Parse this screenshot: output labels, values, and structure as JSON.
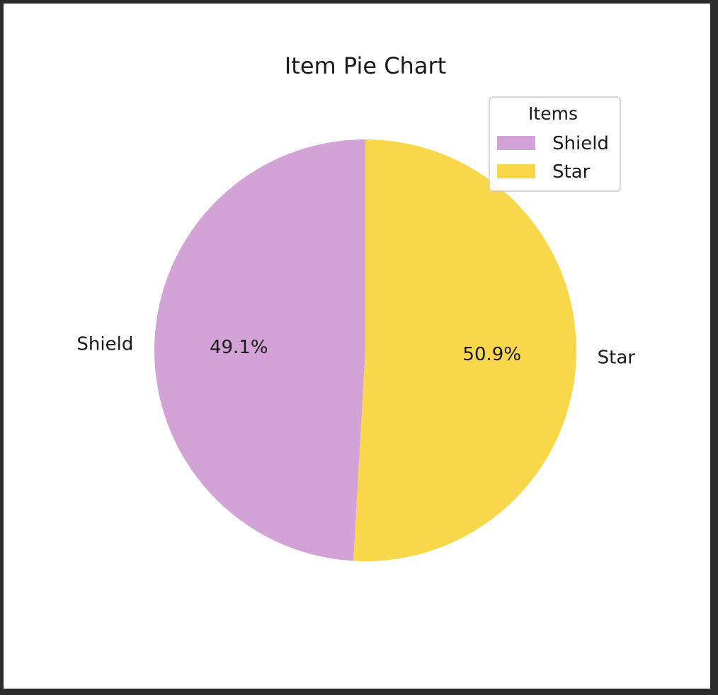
{
  "chart_data": {
    "type": "pie",
    "title": "Item Pie Chart",
    "slices": [
      {
        "label": "Shield",
        "value": 49.1,
        "pct_label": "49.1%",
        "color": "#d3a2d7"
      },
      {
        "label": "Star",
        "value": 50.9,
        "pct_label": "50.9%",
        "color": "#f9d74a"
      }
    ],
    "legend": {
      "title": "Items",
      "placement": "top-right",
      "entries": [
        "Shield",
        "Star"
      ]
    }
  }
}
